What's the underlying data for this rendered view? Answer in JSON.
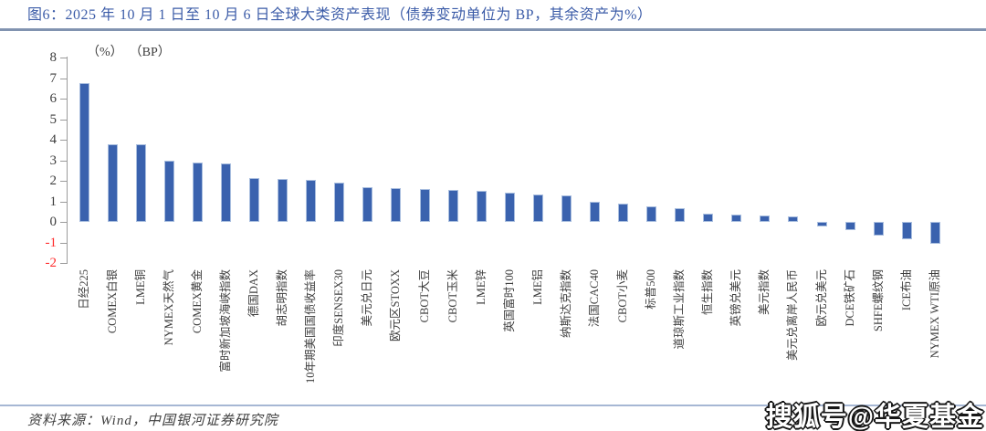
{
  "header": {
    "title": "图6：2025 年 10 月 1 日至 10 月 6 日全球大类资产表现（债券变动单位为 BP，其余资产为%）",
    "title_color": "#3C5CA8"
  },
  "chart_data": {
    "type": "bar",
    "title": "2025年10月1日至10月6日全球大类资产表现（债券变动单位为BP，其余资产为%）",
    "unit_labels": [
      "（%）",
      "（BP）"
    ],
    "xlabel": "",
    "ylabel": "",
    "ylim": [
      -2,
      8
    ],
    "y_ticks": [
      8,
      7,
      6,
      5,
      4,
      3,
      2,
      1,
      0,
      -1,
      -2
    ],
    "grid": false,
    "legend": false,
    "categories": [
      "日经225",
      "COMEX白银",
      "LME铜",
      "NYMEX天然气",
      "COMEX黄金",
      "富时新加坡海峡指数",
      "德国DAX",
      "胡志明指数",
      "10年期美国国债收益率",
      "印度SENSEX30",
      "美元兑日元",
      "欧元区STOXX",
      "CBOT大豆",
      "CBOT玉米",
      "LME锌",
      "英国富时100",
      "LME铝",
      "纳斯达克指数",
      "法国CAC40",
      "CBOT小麦",
      "标普500",
      "道琼斯工业指数",
      "恒生指数",
      "英镑兑美元",
      "美元指数",
      "美元兑离岸人民币",
      "欧元兑美元",
      "DCE铁矿石",
      "SHFE螺纹钢",
      "ICE布油",
      "NYMEX WTI原油"
    ],
    "values": [
      6.75,
      3.8,
      3.78,
      2.97,
      2.9,
      2.85,
      2.12,
      2.07,
      2.04,
      1.9,
      1.7,
      1.66,
      1.62,
      1.55,
      1.52,
      1.42,
      1.35,
      1.28,
      1.0,
      0.9,
      0.76,
      0.68,
      0.42,
      0.34,
      0.3,
      0.25,
      -0.2,
      -0.4,
      -0.65,
      -0.83,
      -1.05
    ],
    "colors": {
      "bar_fill": "#3A62AE",
      "bar_border": "#A9BEDF",
      "axis": "#9B9B9B",
      "tick_label": "#3C3C3C",
      "negative_tick_label": "#FF2B2B"
    }
  },
  "footer": {
    "source": "资料来源：Wind，中国银河证券研究院",
    "watermark": "搜狐号@华夏基金"
  }
}
